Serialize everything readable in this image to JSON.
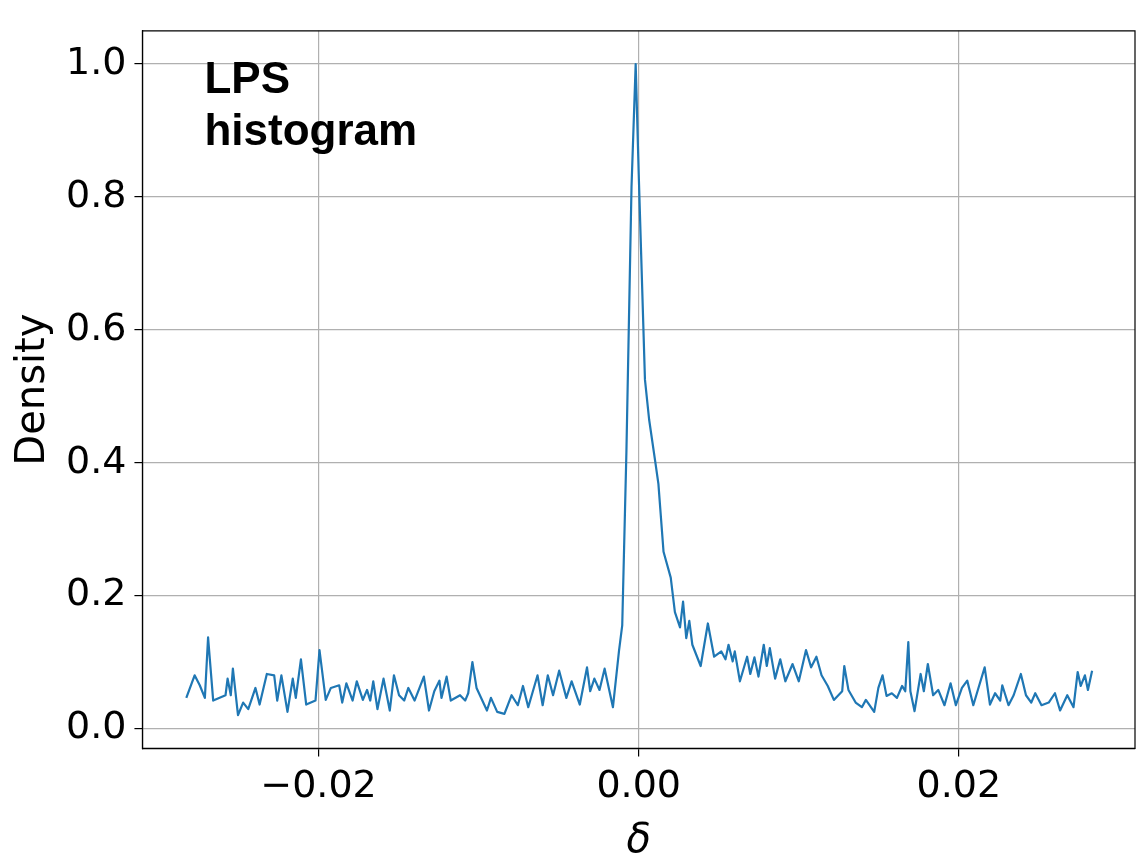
{
  "chart_data": {
    "type": "line",
    "xlabel": "δ",
    "ylabel": "Density",
    "annotations": [
      "LPS\nhistogram"
    ],
    "xlim": [
      -0.031,
      0.031
    ],
    "ylim": [
      -0.03,
      1.05
    ],
    "xticks": [
      {
        "value": -0.02,
        "label": "−0.02"
      },
      {
        "value": 0,
        "label": "0.00"
      },
      {
        "value": 0.02,
        "label": "0.02"
      }
    ],
    "yticks": [
      {
        "value": 0,
        "label": "0.0"
      },
      {
        "value": 0.2,
        "label": "0.2"
      },
      {
        "value": 0.4,
        "label": "0.4"
      },
      {
        "value": 0.6,
        "label": "0.6"
      },
      {
        "value": 0.8,
        "label": "0.8"
      },
      {
        "value": 1,
        "label": "1.0"
      }
    ],
    "grid": true,
    "legend": false,
    "marker": "none",
    "line_style": "solid",
    "series": [
      {
        "color": "#1f77b4",
        "x": [
          -0.02826,
          -0.02774,
          -0.02742,
          -0.0271,
          -0.0269,
          -0.02658,
          -0.02581,
          -0.02568,
          -0.02548,
          -0.02535,
          -0.02503,
          -0.02471,
          -0.02439,
          -0.02394,
          -0.02368,
          -0.02323,
          -0.02277,
          -0.02258,
          -0.02232,
          -0.02194,
          -0.02161,
          -0.02142,
          -0.0211,
          -0.02077,
          -0.02019,
          -0.01994,
          -0.01955,
          -0.01923,
          -0.01871,
          -0.01852,
          -0.01826,
          -0.01787,
          -0.01761,
          -0.01723,
          -0.01697,
          -0.01677,
          -0.01658,
          -0.01632,
          -0.01594,
          -0.01555,
          -0.01529,
          -0.01497,
          -0.01465,
          -0.01439,
          -0.014,
          -0.01342,
          -0.0131,
          -0.01277,
          -0.01245,
          -0.01232,
          -0.012,
          -0.01174,
          -0.01116,
          -0.01084,
          -0.01065,
          -0.01039,
          -0.01013,
          -0.00948,
          -0.00923,
          -0.00884,
          -0.00839,
          -0.00794,
          -0.00755,
          -0.00723,
          -0.0069,
          -0.00632,
          -0.006,
          -0.00568,
          -0.00535,
          -0.00497,
          -0.00452,
          -0.00419,
          -0.00368,
          -0.00323,
          -0.00303,
          -0.00277,
          -0.00245,
          -0.00213,
          -0.00161,
          -0.00123,
          -0.00103,
          -0.00077,
          -0.00045,
          -0.00019,
          0,
          0.00039,
          0.00065,
          0.00103,
          0.00123,
          0.00155,
          0.002,
          0.00226,
          0.00258,
          0.00277,
          0.00297,
          0.00316,
          0.00335,
          0.00387,
          0.00432,
          0.00471,
          0.00516,
          0.00542,
          0.00561,
          0.00587,
          0.006,
          0.00632,
          0.00677,
          0.00697,
          0.00723,
          0.00748,
          0.00781,
          0.008,
          0.00819,
          0.00852,
          0.00884,
          0.00916,
          0.00961,
          0.01,
          0.01045,
          0.01077,
          0.0111,
          0.01142,
          0.01181,
          0.01219,
          0.01271,
          0.01284,
          0.0131,
          0.01355,
          0.01394,
          0.01419,
          0.01471,
          0.01497,
          0.01523,
          0.01548,
          0.01581,
          0.01613,
          0.01645,
          0.01665,
          0.01684,
          0.01697,
          0.01723,
          0.01761,
          0.01781,
          0.01806,
          0.01839,
          0.01871,
          0.0191,
          0.01948,
          0.01981,
          0.02019,
          0.02052,
          0.0209,
          0.02116,
          0.02161,
          0.02194,
          0.02226,
          0.02258,
          0.02271,
          0.0231,
          0.02342,
          0.02387,
          0.02419,
          0.02452,
          0.02477,
          0.02516,
          0.02561,
          0.026,
          0.02632,
          0.02677,
          0.02716,
          0.02742,
          0.02761,
          0.02787,
          0.02806,
          0.02832
        ],
        "values": [
          0.046,
          0.08,
          0.065,
          0.046,
          0.137,
          0.042,
          0.05,
          0.075,
          0.05,
          0.09,
          0.02,
          0.039,
          0.029,
          0.061,
          0.036,
          0.082,
          0.08,
          0.042,
          0.08,
          0.025,
          0.075,
          0.046,
          0.104,
          0.036,
          0.042,
          0.118,
          0.043,
          0.061,
          0.065,
          0.039,
          0.068,
          0.042,
          0.071,
          0.043,
          0.058,
          0.042,
          0.071,
          0.029,
          0.075,
          0.027,
          0.08,
          0.05,
          0.042,
          0.061,
          0.042,
          0.078,
          0.027,
          0.056,
          0.072,
          0.046,
          0.078,
          0.042,
          0.05,
          0.042,
          0.053,
          0.1,
          0.061,
          0.027,
          0.046,
          0.025,
          0.022,
          0.05,
          0.035,
          0.064,
          0.032,
          0.08,
          0.035,
          0.08,
          0.05,
          0.087,
          0.046,
          0.071,
          0.036,
          0.092,
          0.056,
          0.075,
          0.058,
          0.09,
          0.032,
          0.117,
          0.155,
          0.415,
          0.815,
          1.0,
          0.835,
          0.525,
          0.465,
          0.402,
          0.368,
          0.266,
          0.227,
          0.175,
          0.152,
          0.191,
          0.136,
          0.162,
          0.126,
          0.094,
          0.158,
          0.108,
          0.116,
          0.104,
          0.126,
          0.101,
          0.116,
          0.071,
          0.108,
          0.082,
          0.107,
          0.078,
          0.126,
          0.094,
          0.121,
          0.075,
          0.104,
          0.071,
          0.097,
          0.071,
          0.118,
          0.092,
          0.108,
          0.08,
          0.064,
          0.043,
          0.056,
          0.094,
          0.058,
          0.039,
          0.032,
          0.043,
          0.025,
          0.061,
          0.08,
          0.049,
          0.053,
          0.046,
          0.064,
          0.056,
          0.13,
          0.056,
          0.026,
          0.082,
          0.056,
          0.097,
          0.05,
          0.058,
          0.035,
          0.068,
          0.035,
          0.061,
          0.072,
          0.035,
          0.056,
          0.092,
          0.036,
          0.053,
          0.042,
          0.065,
          0.035,
          0.05,
          0.082,
          0.05,
          0.039,
          0.053,
          0.035,
          0.039,
          0.053,
          0.027,
          0.05,
          0.032,
          0.085,
          0.064,
          0.08,
          0.058,
          0.087
        ]
      }
    ]
  }
}
